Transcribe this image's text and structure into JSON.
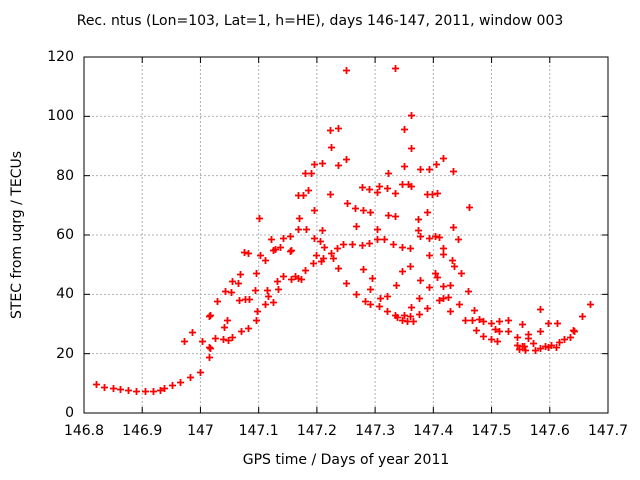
{
  "chart_data": {
    "type": "scatter",
    "title": "Rec. ntus (Lon=103, Lat=1, h=HE), days 146-147, 2011, window 003",
    "xlabel": "GPS time / Days of year 2011",
    "ylabel": "STEC from uqrg / TECUs",
    "xlim": [
      146.8,
      147.7
    ],
    "ylim": [
      0,
      120
    ],
    "x_ticks": [
      146.8,
      146.9,
      147.0,
      147.1,
      147.2,
      147.3,
      147.4,
      147.5,
      147.6,
      147.7
    ],
    "x_tick_labels": [
      "146.8",
      "146.9",
      "147",
      "147.1",
      "147.2",
      "147.3",
      "147.4",
      "147.5",
      "147.6",
      "147.7"
    ],
    "y_ticks": [
      0,
      20,
      40,
      60,
      80,
      100,
      120
    ],
    "y_tick_labels": [
      "0",
      "20",
      "40",
      "60",
      "80",
      "100",
      "120"
    ],
    "grid": true,
    "legend_position": "none",
    "marker": "plus",
    "marker_color": "#ff0000",
    "grid_color": "#b0b0b0",
    "border_color": "#000000",
    "series": [
      {
        "name": "STEC",
        "points": [
          [
            146.821,
            9.7
          ],
          [
            146.835,
            8.9
          ],
          [
            146.849,
            8.4
          ],
          [
            146.862,
            8.1
          ],
          [
            146.876,
            7.8
          ],
          [
            146.89,
            7.5
          ],
          [
            146.904,
            7.3
          ],
          [
            146.918,
            7.5
          ],
          [
            146.931,
            7.9
          ],
          [
            146.938,
            8.4
          ],
          [
            146.951,
            9.5
          ],
          [
            146.965,
            10.5
          ],
          [
            146.972,
            24.4
          ],
          [
            146.982,
            12.3
          ],
          [
            146.986,
            27.4
          ],
          [
            146.999,
            13.9
          ],
          [
            147.003,
            24.4
          ],
          [
            147.014,
            18.8
          ],
          [
            147.014,
            32.8
          ],
          [
            147.015,
            22.4
          ],
          [
            147.016,
            21.9
          ],
          [
            147.017,
            33.0
          ],
          [
            147.025,
            25.3
          ],
          [
            147.028,
            37.6
          ],
          [
            147.038,
            24.9
          ],
          [
            147.041,
            29.0
          ],
          [
            147.042,
            41.0
          ],
          [
            147.045,
            31.4
          ],
          [
            147.048,
            24.7
          ],
          [
            147.053,
            40.7
          ],
          [
            147.054,
            44.4
          ],
          [
            147.055,
            25.6
          ],
          [
            147.065,
            43.8
          ],
          [
            147.067,
            38.2
          ],
          [
            147.068,
            46.7
          ],
          [
            147.07,
            27.8
          ],
          [
            147.075,
            54.3
          ],
          [
            147.077,
            38.5
          ],
          [
            147.082,
            28.5
          ],
          [
            147.082,
            53.8
          ],
          [
            147.084,
            38.4
          ],
          [
            147.093,
            41.6
          ],
          [
            147.095,
            31.2
          ],
          [
            147.095,
            47.2
          ],
          [
            147.097,
            34.5
          ],
          [
            147.1,
            65.8
          ],
          [
            147.102,
            53.4
          ],
          [
            147.111,
            36.7
          ],
          [
            147.111,
            51.7
          ],
          [
            147.114,
            41.6
          ],
          [
            147.116,
            39.3
          ],
          [
            147.122,
            58.7
          ],
          [
            147.124,
            37.3
          ],
          [
            147.125,
            54.8
          ],
          [
            147.128,
            55.3
          ],
          [
            147.131,
            44.4
          ],
          [
            147.134,
            41.8
          ],
          [
            147.137,
            56.0
          ],
          [
            147.141,
            46.1
          ],
          [
            147.142,
            59.1
          ],
          [
            147.154,
            54.5
          ],
          [
            147.154,
            59.8
          ],
          [
            147.155,
            55.1
          ],
          [
            147.156,
            45.2
          ],
          [
            147.162,
            46.3
          ],
          [
            147.168,
            45.5
          ],
          [
            147.168,
            62.1
          ],
          [
            147.168,
            73.5
          ],
          [
            147.17,
            65.6
          ],
          [
            147.172,
            45.3
          ],
          [
            147.177,
            73.4
          ],
          [
            147.18,
            48.1
          ],
          [
            147.18,
            81.0
          ],
          [
            147.182,
            62.1
          ],
          [
            147.185,
            75.2
          ],
          [
            147.19,
            81.0
          ],
          [
            147.194,
            50.6
          ],
          [
            147.195,
            59.1
          ],
          [
            147.195,
            68.3
          ],
          [
            147.195,
            84.1
          ],
          [
            147.199,
            53.4
          ],
          [
            147.205,
            57.9
          ],
          [
            147.207,
            51.4
          ],
          [
            147.208,
            61.6
          ],
          [
            147.208,
            84.2
          ],
          [
            147.21,
            52.1
          ],
          [
            147.213,
            56.0
          ],
          [
            147.223,
            73.7
          ],
          [
            147.223,
            95.3
          ],
          [
            147.224,
            89.5
          ],
          [
            147.225,
            54.0
          ],
          [
            147.228,
            52.1
          ],
          [
            147.234,
            55.7
          ],
          [
            147.236,
            83.6
          ],
          [
            147.236,
            96.0
          ],
          [
            147.237,
            48.9
          ],
          [
            147.245,
            57.1
          ],
          [
            147.25,
            43.8
          ],
          [
            147.25,
            85.5
          ],
          [
            147.25,
            115.5
          ],
          [
            147.251,
            70.9
          ],
          [
            147.261,
            56.8
          ],
          [
            147.266,
            69.2
          ],
          [
            147.267,
            40.1
          ],
          [
            147.267,
            63.2
          ],
          [
            147.277,
            56.5
          ],
          [
            147.277,
            76.2
          ],
          [
            147.279,
            68.4
          ],
          [
            147.28,
            48.7
          ],
          [
            147.283,
            37.6
          ],
          [
            147.29,
            57.4
          ],
          [
            147.29,
            75.4
          ],
          [
            147.291,
            67.7
          ],
          [
            147.292,
            36.7
          ],
          [
            147.292,
            41.9
          ],
          [
            147.294,
            45.5
          ],
          [
            147.303,
            74.6
          ],
          [
            147.304,
            58.7
          ],
          [
            147.304,
            62.1
          ],
          [
            147.307,
            35.9
          ],
          [
            147.307,
            76.5
          ],
          [
            147.308,
            38.8
          ],
          [
            147.316,
            58.5
          ],
          [
            147.32,
            76.0
          ],
          [
            147.321,
            34.3
          ],
          [
            147.321,
            39.3
          ],
          [
            147.322,
            66.9
          ],
          [
            147.322,
            80.8
          ],
          [
            147.331,
            56.8
          ],
          [
            147.334,
            33.1
          ],
          [
            147.334,
            74.3
          ],
          [
            147.334,
            116.3
          ],
          [
            147.335,
            66.4
          ],
          [
            147.336,
            43.0
          ],
          [
            147.338,
            32.2
          ],
          [
            147.346,
            31.4
          ],
          [
            147.346,
            48.0
          ],
          [
            147.346,
            56.0
          ],
          [
            147.347,
            77.3
          ],
          [
            147.35,
            32.9
          ],
          [
            147.35,
            83.3
          ],
          [
            147.35,
            95.7
          ],
          [
            147.354,
            30.9
          ],
          [
            147.357,
            77.3
          ],
          [
            147.36,
            32.6
          ],
          [
            147.36,
            49.5
          ],
          [
            147.36,
            55.7
          ],
          [
            147.362,
            35.6
          ],
          [
            147.362,
            76.5
          ],
          [
            147.362,
            89.4
          ],
          [
            147.362,
            100.3
          ],
          [
            147.365,
            30.9
          ],
          [
            147.374,
            61.6
          ],
          [
            147.374,
            65.5
          ],
          [
            147.376,
            33.4
          ],
          [
            147.376,
            38.8
          ],
          [
            147.377,
            45.0
          ],
          [
            147.377,
            59.6
          ],
          [
            147.377,
            82.2
          ],
          [
            147.389,
            35.4
          ],
          [
            147.389,
            67.7
          ],
          [
            147.389,
            73.7
          ],
          [
            147.392,
            42.4
          ],
          [
            147.392,
            53.1
          ],
          [
            147.392,
            59.1
          ],
          [
            147.392,
            82.2
          ],
          [
            147.397,
            73.9
          ],
          [
            147.403,
            47.2
          ],
          [
            147.403,
            59.6
          ],
          [
            147.405,
            84.1
          ],
          [
            147.406,
            74.3
          ],
          [
            147.407,
            45.7
          ],
          [
            147.409,
            38.2
          ],
          [
            147.41,
            59.4
          ],
          [
            147.416,
            38.8
          ],
          [
            147.416,
            42.9
          ],
          [
            147.417,
            53.6
          ],
          [
            147.417,
            55.7
          ],
          [
            147.417,
            85.9
          ],
          [
            147.426,
            39.0
          ],
          [
            147.428,
            34.3
          ],
          [
            147.429,
            43.3
          ],
          [
            147.432,
            51.7
          ],
          [
            147.433,
            62.8
          ],
          [
            147.433,
            81.6
          ],
          [
            147.435,
            49.7
          ],
          [
            147.443,
            58.5
          ],
          [
            147.444,
            36.8
          ],
          [
            147.447,
            47.2
          ],
          [
            147.455,
            31.4
          ],
          [
            147.46,
            41.2
          ],
          [
            147.462,
            69.4
          ],
          [
            147.466,
            31.2
          ],
          [
            147.47,
            34.8
          ],
          [
            147.473,
            28.1
          ],
          [
            147.479,
            31.7
          ],
          [
            147.485,
            26.0
          ],
          [
            147.485,
            30.9
          ],
          [
            147.499,
            24.9
          ],
          [
            147.499,
            30.5
          ],
          [
            147.506,
            28.3
          ],
          [
            147.51,
            24.4
          ],
          [
            147.513,
            27.5
          ],
          [
            147.513,
            30.9
          ],
          [
            147.529,
            27.5
          ],
          [
            147.529,
            31.4
          ],
          [
            147.544,
            22.8
          ],
          [
            147.544,
            25.6
          ],
          [
            147.547,
            21.6
          ],
          [
            147.552,
            30.1
          ],
          [
            147.553,
            22.7
          ],
          [
            147.555,
            22.7
          ],
          [
            147.557,
            21.3
          ],
          [
            147.562,
            26.7
          ],
          [
            147.563,
            25.3
          ],
          [
            147.571,
            23.6
          ],
          [
            147.575,
            21.3
          ],
          [
            147.583,
            21.9
          ],
          [
            147.584,
            27.7
          ],
          [
            147.584,
            35.1
          ],
          [
            147.592,
            22.7
          ],
          [
            147.597,
            22.2
          ],
          [
            147.597,
            30.3
          ],
          [
            147.602,
            23.0
          ],
          [
            147.61,
            22.4
          ],
          [
            147.612,
            30.5
          ],
          [
            147.615,
            24.1
          ],
          [
            147.625,
            24.9
          ],
          [
            147.635,
            25.6
          ],
          [
            147.64,
            28.1
          ],
          [
            147.641,
            27.5
          ],
          [
            147.656,
            32.6
          ],
          [
            147.669,
            36.7
          ]
        ]
      }
    ]
  }
}
